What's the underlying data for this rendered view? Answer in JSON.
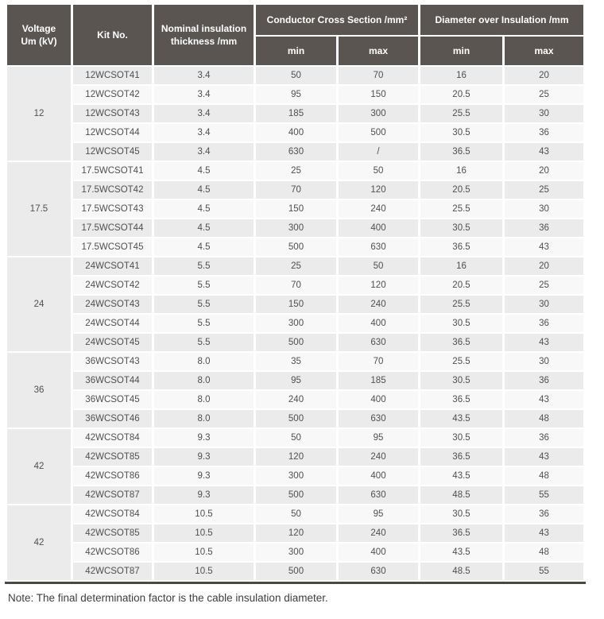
{
  "table": {
    "headers": {
      "voltage": "Voltage\nUm (kV)",
      "kit": "Kit No.",
      "nominal": "Nominal insulation\nthickness /mm",
      "conductor_cross_section": "Conductor Cross Section /mm²",
      "diameter_over_insulation": "Diameter over Insulation /mm",
      "min": "min",
      "max": "max"
    },
    "row_fields": [
      "kit_no",
      "thickness",
      "ccs_min",
      "ccs_max",
      "dia_min",
      "dia_max"
    ],
    "groups": [
      {
        "voltage": "12",
        "rows": [
          [
            "12WCSOT41",
            "3.4",
            "50",
            "70",
            "16",
            "20"
          ],
          [
            "12WCSOT42",
            "3.4",
            "95",
            "150",
            "20.5",
            "25"
          ],
          [
            "12WCSOT43",
            "3.4",
            "185",
            "300",
            "25.5",
            "30"
          ],
          [
            "12WCSOT44",
            "3.4",
            "400",
            "500",
            "30.5",
            "36"
          ],
          [
            "12WCSOT45",
            "3.4",
            "630",
            "/",
            "36.5",
            "43"
          ]
        ]
      },
      {
        "voltage": "17.5",
        "rows": [
          [
            "17.5WCSOT41",
            "4.5",
            "25",
            "50",
            "16",
            "20"
          ],
          [
            "17.5WCSOT42",
            "4.5",
            "70",
            "120",
            "20.5",
            "25"
          ],
          [
            "17.5WCSOT43",
            "4.5",
            "150",
            "240",
            "25.5",
            "30"
          ],
          [
            "17.5WCSOT44",
            "4.5",
            "300",
            "400",
            "30.5",
            "36"
          ],
          [
            "17.5WCSOT45",
            "4.5",
            "500",
            "630",
            "36.5",
            "43"
          ]
        ]
      },
      {
        "voltage": "24",
        "rows": [
          [
            "24WCSOT41",
            "5.5",
            "25",
            "50",
            "16",
            "20"
          ],
          [
            "24WCSOT42",
            "5.5",
            "70",
            "120",
            "20.5",
            "25"
          ],
          [
            "24WCSOT43",
            "5.5",
            "150",
            "240",
            "25.5",
            "30"
          ],
          [
            "24WCSOT44",
            "5.5",
            "300",
            "400",
            "30.5",
            "36"
          ],
          [
            "24WCSOT45",
            "5.5",
            "500",
            "630",
            "36.5",
            "43"
          ]
        ]
      },
      {
        "voltage": "36",
        "rows": [
          [
            "36WCSOT43",
            "8.0",
            "35",
            "70",
            "25.5",
            "30"
          ],
          [
            "36WCSOT44",
            "8.0",
            "95",
            "185",
            "30.5",
            "36"
          ],
          [
            "36WCSOT45",
            "8.0",
            "240",
            "400",
            "36.5",
            "43"
          ],
          [
            "36WCSOT46",
            "8.0",
            "500",
            "630",
            "43.5",
            "48"
          ]
        ]
      },
      {
        "voltage": "42",
        "rows": [
          [
            "42WCSOT84",
            "9.3",
            "50",
            "95",
            "30.5",
            "36"
          ],
          [
            "42WCSOT85",
            "9.3",
            "120",
            "240",
            "36.5",
            "43"
          ],
          [
            "42WCSOT86",
            "9.3",
            "300",
            "400",
            "43.5",
            "48"
          ],
          [
            "42WCSOT87",
            "9.3",
            "500",
            "630",
            "48.5",
            "55"
          ]
        ]
      },
      {
        "voltage": "42",
        "rows": [
          [
            "42WCSOT84",
            "10.5",
            "50",
            "95",
            "30.5",
            "36"
          ],
          [
            "42WCSOT85",
            "10.5",
            "120",
            "240",
            "36.5",
            "43"
          ],
          [
            "42WCSOT86",
            "10.5",
            "300",
            "400",
            "43.5",
            "48"
          ],
          [
            "42WCSOT87",
            "10.5",
            "500",
            "630",
            "48.5",
            "55"
          ]
        ]
      }
    ]
  },
  "note": "Note: The final determination factor is the cable insulation diameter.",
  "colors": {
    "header_bg": "#5a5551",
    "row_odd_bg": "#ebebeb",
    "row_even_bg": "#f8f8f8",
    "group_cell_bg": "#ebebeb",
    "bottom_rule": "#4b4743",
    "body_text": "#4f4f4f",
    "note_text": "#3d3d3d"
  }
}
